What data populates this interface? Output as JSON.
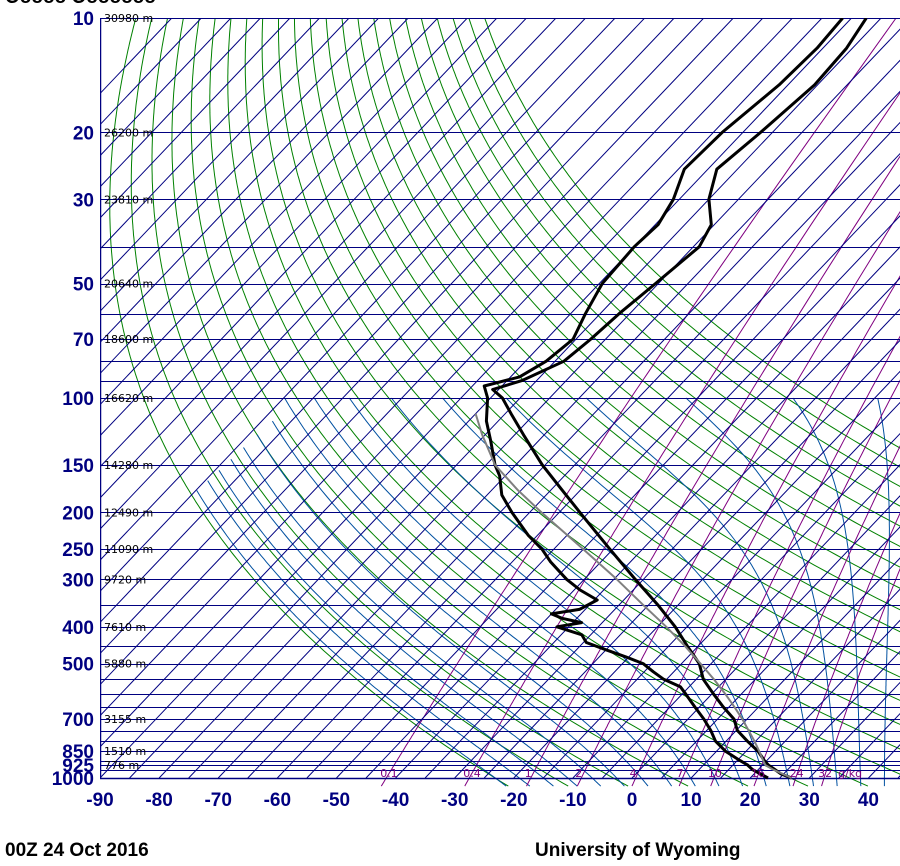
{
  "header_partial": "Ooooo Ooooooo",
  "footer": {
    "left": "00Z 24 Oct 2016",
    "right": "University of Wyoming"
  },
  "colors": {
    "grid": "#000080",
    "dry_adiabat": "#008000",
    "moist_adiabat": "#0050a0",
    "mixing_ratio": "#800080",
    "sounding": "#000000",
    "parcel": "#808080"
  },
  "chart_data": {
    "type": "skew-t",
    "xlim": [
      -90,
      45
    ],
    "ylim": [
      1000,
      10
    ],
    "y_scale": "log",
    "grid": true,
    "pressure_ticks": [
      10,
      20,
      30,
      50,
      70,
      100,
      150,
      200,
      250,
      300,
      400,
      500,
      700,
      850,
      925,
      1000
    ],
    "temperature_ticks": [
      -90,
      -80,
      -70,
      -60,
      -50,
      -40,
      -30,
      -20,
      -10,
      0,
      10,
      20,
      30,
      40
    ],
    "height_labels": [
      {
        "p": 10,
        "label": "30980 m"
      },
      {
        "p": 20,
        "label": "26200 m"
      },
      {
        "p": 30,
        "label": "23810 m"
      },
      {
        "p": 50,
        "label": "20640 m"
      },
      {
        "p": 70,
        "label": "18600 m"
      },
      {
        "p": 100,
        "label": "16620 m"
      },
      {
        "p": 150,
        "label": "14280 m"
      },
      {
        "p": 200,
        "label": "12490 m"
      },
      {
        "p": 250,
        "label": "11090 m"
      },
      {
        "p": 300,
        "label": "9720 m"
      },
      {
        "p": 400,
        "label": "7610 m"
      },
      {
        "p": 500,
        "label": "5880 m"
      },
      {
        "p": 700,
        "label": "3155 m"
      },
      {
        "p": 850,
        "label": "1510 m"
      },
      {
        "p": 925,
        "label": "776 m"
      }
    ],
    "mixing_ratio_labels": [
      "0.1",
      "0.4",
      "1",
      "2",
      "4",
      "7",
      "10",
      "16",
      "24",
      "32",
      "g/kg"
    ],
    "mixing_ratio_values": [
      0.1,
      0.4,
      1,
      2,
      4,
      7,
      10,
      16,
      24,
      32
    ],
    "dry_adiabats_theta_K": [
      250,
      260,
      270,
      280,
      290,
      300,
      310,
      320,
      330,
      340,
      350,
      360,
      370,
      380,
      390,
      400,
      410,
      420,
      430,
      440,
      450,
      460,
      470
    ],
    "moist_adiabats_start_C": [
      -20,
      -16,
      -12,
      -8,
      -4,
      0,
      4,
      8,
      12,
      16,
      20,
      24,
      28,
      32,
      36,
      40,
      44
    ],
    "series": [
      {
        "role": "temperature",
        "points": [
          {
            "p": 1000,
            "t": 27.0
          },
          {
            "p": 975,
            "t": 24.5
          },
          {
            "p": 950,
            "t": 22.8
          },
          {
            "p": 925,
            "t": 21.0
          },
          {
            "p": 900,
            "t": 19.6
          },
          {
            "p": 850,
            "t": 17.0
          },
          {
            "p": 800,
            "t": 13.6
          },
          {
            "p": 750,
            "t": 10.2
          },
          {
            "p": 700,
            "t": 7.8
          },
          {
            "p": 650,
            "t": 4.0
          },
          {
            "p": 600,
            "t": 0.2
          },
          {
            "p": 550,
            "t": -3.8
          },
          {
            "p": 500,
            "t": -7.0
          },
          {
            "p": 450,
            "t": -11.8
          },
          {
            "p": 400,
            "t": -17.0
          },
          {
            "p": 350,
            "t": -23.5
          },
          {
            "p": 300,
            "t": -31.4
          },
          {
            "p": 250,
            "t": -40.5
          },
          {
            "p": 200,
            "t": -51.5
          },
          {
            "p": 175,
            "t": -58.0
          },
          {
            "p": 150,
            "t": -65.5
          },
          {
            "p": 125,
            "t": -73.5
          },
          {
            "p": 110,
            "t": -79.0
          },
          {
            "p": 100,
            "t": -83.0
          },
          {
            "p": 95,
            "t": -86.0
          },
          {
            "p": 90,
            "t": -82.5
          },
          {
            "p": 80,
            "t": -78.5
          },
          {
            "p": 70,
            "t": -77.5
          },
          {
            "p": 60,
            "t": -76.8
          },
          {
            "p": 50,
            "t": -75.5
          },
          {
            "p": 40,
            "t": -74.0
          },
          {
            "p": 35,
            "t": -75.5
          },
          {
            "p": 30,
            "t": -80.0
          },
          {
            "p": 25,
            "t": -83.5
          },
          {
            "p": 20,
            "t": -82.0
          },
          {
            "p": 15,
            "t": -80.5
          },
          {
            "p": 12,
            "t": -81.0
          },
          {
            "p": 10,
            "t": -82.5
          }
        ]
      },
      {
        "role": "dewpoint",
        "points": [
          {
            "p": 1000,
            "t": 23.0
          },
          {
            "p": 950,
            "t": 19.0
          },
          {
            "p": 925,
            "t": 17.5
          },
          {
            "p": 900,
            "t": 15.5
          },
          {
            "p": 850,
            "t": 11.5
          },
          {
            "p": 800,
            "t": 8.2
          },
          {
            "p": 750,
            "t": 5.7
          },
          {
            "p": 700,
            "t": 2.7
          },
          {
            "p": 650,
            "t": -0.8
          },
          {
            "p": 600,
            "t": -4.5
          },
          {
            "p": 575,
            "t": -6.5
          },
          {
            "p": 550,
            "t": -10.5
          },
          {
            "p": 525,
            "t": -13.5
          },
          {
            "p": 500,
            "t": -16.5
          },
          {
            "p": 480,
            "t": -20.5
          },
          {
            "p": 460,
            "t": -25.0
          },
          {
            "p": 440,
            "t": -29.5
          },
          {
            "p": 420,
            "t": -31.5
          },
          {
            "p": 400,
            "t": -37.0
          },
          {
            "p": 390,
            "t": -33.5
          },
          {
            "p": 380,
            "t": -37.5
          },
          {
            "p": 370,
            "t": -40.0
          },
          {
            "p": 360,
            "t": -36.0
          },
          {
            "p": 340,
            "t": -34.5
          },
          {
            "p": 320,
            "t": -39.0
          },
          {
            "p": 300,
            "t": -43.0
          },
          {
            "p": 270,
            "t": -48.5
          },
          {
            "p": 250,
            "t": -52.0
          },
          {
            "p": 230,
            "t": -56.5
          },
          {
            "p": 200,
            "t": -63.0
          },
          {
            "p": 180,
            "t": -67.5
          },
          {
            "p": 160,
            "t": -71.0
          },
          {
            "p": 150,
            "t": -73.5
          },
          {
            "p": 130,
            "t": -78.0
          },
          {
            "p": 115,
            "t": -82.0
          },
          {
            "p": 100,
            "t": -85.5
          },
          {
            "p": 93,
            "t": -88.0
          },
          {
            "p": 88,
            "t": -83.5
          },
          {
            "p": 80,
            "t": -81.5
          },
          {
            "p": 70,
            "t": -80.5
          },
          {
            "p": 60,
            "t": -82.5
          },
          {
            "p": 50,
            "t": -84.5
          },
          {
            "p": 40,
            "t": -85.0
          },
          {
            "p": 35,
            "t": -84.5
          },
          {
            "p": 30,
            "t": -86.0
          },
          {
            "p": 25,
            "t": -89.0
          },
          {
            "p": 20,
            "t": -88.5
          },
          {
            "p": 15,
            "t": -86.5
          },
          {
            "p": 12,
            "t": -86.0
          },
          {
            "p": 10,
            "t": -86.5
          }
        ]
      },
      {
        "role": "parcel",
        "points": [
          {
            "p": 1000,
            "t": 27.0
          },
          {
            "p": 950,
            "t": 22.5
          },
          {
            "p": 925,
            "t": 20.5
          },
          {
            "p": 900,
            "t": 19.4
          },
          {
            "p": 850,
            "t": 17.2
          },
          {
            "p": 800,
            "t": 14.8
          },
          {
            "p": 750,
            "t": 12.1
          },
          {
            "p": 700,
            "t": 9.2
          },
          {
            "p": 650,
            "t": 5.9
          },
          {
            "p": 600,
            "t": 2.2
          },
          {
            "p": 550,
            "t": -2.0
          },
          {
            "p": 500,
            "t": -6.8
          },
          {
            "p": 450,
            "t": -12.2
          },
          {
            "p": 400,
            "t": -18.5
          },
          {
            "p": 350,
            "t": -26.0
          },
          {
            "p": 300,
            "t": -34.5
          },
          {
            "p": 250,
            "t": -45.0
          },
          {
            "p": 200,
            "t": -58.0
          },
          {
            "p": 175,
            "t": -65.5
          },
          {
            "p": 150,
            "t": -73.5
          },
          {
            "p": 125,
            "t": -80.5
          },
          {
            "p": 110,
            "t": -85.0
          }
        ]
      }
    ]
  }
}
